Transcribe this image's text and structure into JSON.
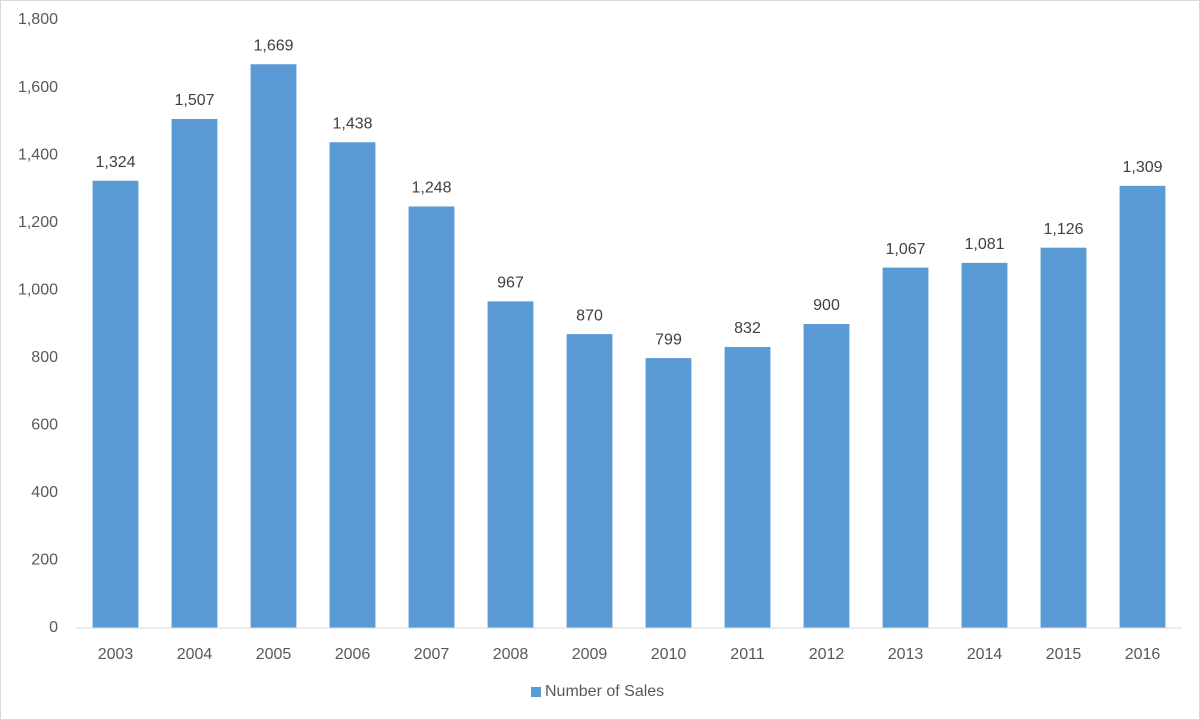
{
  "chart_data": {
    "type": "bar",
    "categories": [
      "2003",
      "2004",
      "2005",
      "2006",
      "2007",
      "2008",
      "2009",
      "2010",
      "2011",
      "2012",
      "2013",
      "2014",
      "2015",
      "2016"
    ],
    "series": [
      {
        "name": "Number of Sales",
        "color": "#5b9bd5",
        "values": [
          1324,
          1507,
          1669,
          1438,
          1248,
          967,
          870,
          799,
          832,
          900,
          1067,
          1081,
          1126,
          1309
        ],
        "value_labels": [
          "1,324",
          "1,507",
          "1,669",
          "1,438",
          "1,248",
          "967",
          "870",
          "799",
          "832",
          "900",
          "1,067",
          "1,081",
          "1,126",
          "1,309"
        ]
      }
    ],
    "ylim": [
      0,
      1800
    ],
    "yticks": [
      0,
      200,
      400,
      600,
      800,
      {
        "value": 1000,
        "label": "1,000"
      },
      {
        "value": 1200,
        "label": "1,200"
      },
      {
        "value": 1400,
        "label": "1,400"
      },
      {
        "value": 1600,
        "label": "1,600"
      },
      {
        "value": 1800,
        "label": "1,800"
      }
    ],
    "grid": false,
    "legend": "bottom"
  }
}
